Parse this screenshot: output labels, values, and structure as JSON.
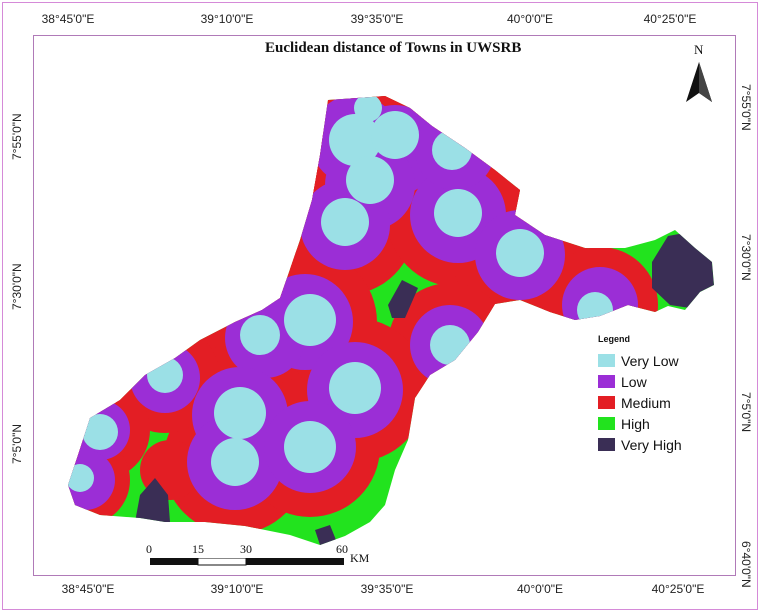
{
  "map": {
    "title": "Euclidean distance of Towns in UWSRB",
    "north": "N",
    "top_ticks": [
      "38°45'0\"E",
      "39°10'0\"E",
      "39°35'0\"E",
      "40°0'0\"E",
      "40°25'0\"E"
    ],
    "bottom_ticks": [
      "38°45'0\"E",
      "39°10'0\"E",
      "39°35'0\"E",
      "40°0'0\"E",
      "40°25'0\"E"
    ],
    "left_ticks": [
      "7°55'0\"N",
      "7°30'0\"N",
      "7°5'0\"N"
    ],
    "right_ticks": [
      "7°55'0\"N",
      "7°30'0\"N",
      "7°5'0\"N",
      "6°40'0\"N"
    ],
    "legend": {
      "title": "Legend",
      "items": [
        {
          "label": "Very Low",
          "color": "#9be0e6"
        },
        {
          "label": "Low",
          "color": "#9b2ed6"
        },
        {
          "label": "Medium",
          "color": "#e31e24"
        },
        {
          "label": "High",
          "color": "#22e31e"
        },
        {
          "label": "Very High",
          "color": "#3a2e55"
        }
      ]
    },
    "scale": {
      "labels": [
        "0",
        "15",
        "30",
        "60"
      ],
      "unit": "KM"
    }
  }
}
